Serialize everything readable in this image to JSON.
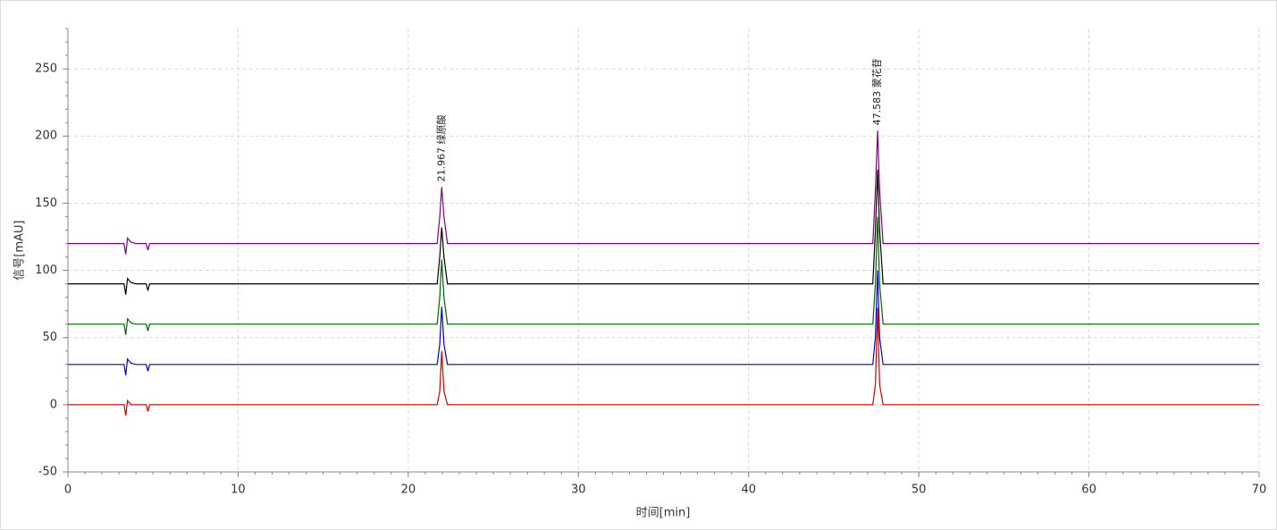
{
  "chart_data": {
    "type": "line",
    "xlabel": "时间[min]",
    "ylabel": "信号[mAU]",
    "xlim": [
      0,
      70
    ],
    "ylim": [
      -50,
      280
    ],
    "xticks": [
      0,
      10,
      20,
      30,
      40,
      50,
      60,
      70
    ],
    "yticks": [
      -50,
      0,
      50,
      100,
      150,
      200,
      250
    ],
    "grid": true,
    "x": [
      0,
      3.3,
      3.4,
      3.5,
      3.7,
      4.0,
      4.6,
      4.7,
      4.8,
      21.7,
      21.85,
      21.967,
      22.1,
      22.3,
      47.3,
      47.45,
      47.583,
      47.7,
      47.9,
      60,
      70
    ],
    "series": [
      {
        "color": "#cc0000",
        "values": [
          0,
          0,
          -8,
          3,
          0,
          0,
          0,
          -5,
          0,
          0,
          10,
          40,
          10,
          0,
          0,
          15,
          72,
          15,
          0,
          0,
          0
        ]
      },
      {
        "color": "#0000cd",
        "values": [
          30,
          30,
          22,
          34,
          31,
          30,
          30,
          25,
          30,
          30,
          45,
          73,
          45,
          30,
          30,
          50,
          100,
          50,
          30,
          30,
          30
        ]
      },
      {
        "color": "#006400",
        "values": [
          60,
          60,
          52,
          64,
          61,
          60,
          60,
          55,
          60,
          60,
          80,
          108,
          80,
          60,
          60,
          90,
          140,
          90,
          60,
          60,
          60
        ]
      },
      {
        "color": "#000000",
        "values": [
          90,
          90,
          82,
          94,
          91,
          90,
          90,
          85,
          90,
          90,
          110,
          132,
          110,
          90,
          90,
          130,
          175,
          130,
          90,
          90,
          90
        ]
      },
      {
        "color": "#800080",
        "values": [
          120,
          120,
          112,
          124,
          121,
          120,
          120,
          115,
          120,
          120,
          140,
          162,
          140,
          120,
          120,
          160,
          204,
          160,
          120,
          120,
          120
        ]
      }
    ],
    "annotations": [
      {
        "x": 21.967,
        "y": 162,
        "text": "21.967  绿原酸"
      },
      {
        "x": 47.583,
        "y": 204,
        "text": "47.583  蒙花苷"
      }
    ]
  }
}
